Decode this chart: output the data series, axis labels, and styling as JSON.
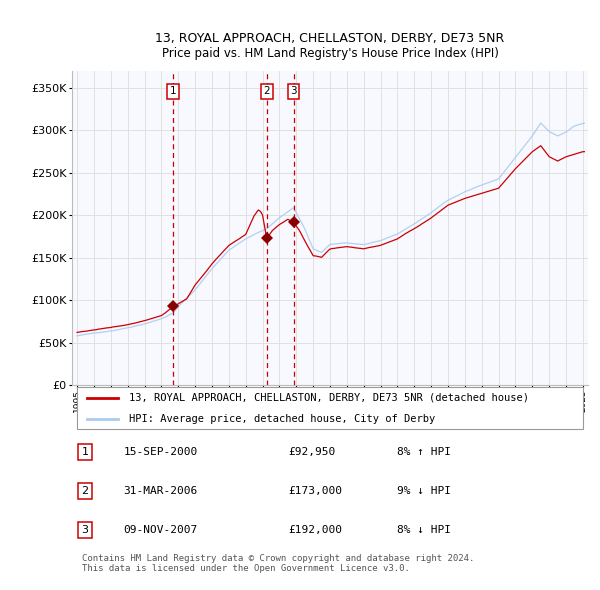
{
  "title1": "13, ROYAL APPROACH, CHELLASTON, DERBY, DE73 5NR",
  "title2": "Price paid vs. HM Land Registry's House Price Index (HPI)",
  "legend1": "13, ROYAL APPROACH, CHELLASTON, DERBY, DE73 5NR (detached house)",
  "legend2": "HPI: Average price, detached house, City of Derby",
  "transactions": [
    {
      "num": 1,
      "date": "15-SEP-2000",
      "year": 2000.71,
      "price": 92950,
      "pct": "8%",
      "dir": "↑"
    },
    {
      "num": 2,
      "date": "31-MAR-2006",
      "year": 2006.25,
      "price": 173000,
      "pct": "9%",
      "dir": "↓"
    },
    {
      "num": 3,
      "date": "09-NOV-2007",
      "year": 2007.84,
      "price": 192000,
      "pct": "8%",
      "dir": "↓"
    }
  ],
  "footer": "Contains HM Land Registry data © Crown copyright and database right 2024.\nThis data is licensed under the Open Government Licence v3.0.",
  "hpi_color": "#aaccee",
  "property_color": "#cc0000",
  "plot_bg": "#f8f8ff",
  "grid_color": "#dddddd",
  "dashed_color": "#cc0000",
  "marker_color": "#880000",
  "ylim": [
    0,
    370000
  ],
  "yticks": [
    0,
    50000,
    100000,
    150000,
    200000,
    250000,
    300000,
    350000
  ]
}
